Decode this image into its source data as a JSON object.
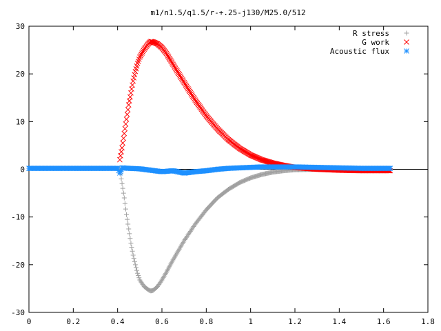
{
  "chart_data": {
    "type": "scatter",
    "title": "m1/n1.5/q1.5/r-+.25-j130/M25.0/512",
    "xlabel": "",
    "ylabel": "",
    "xlim": [
      0,
      1.8
    ],
    "ylim": [
      -30,
      30
    ],
    "x_ticks": [
      0,
      0.2,
      0.4,
      0.6,
      0.8,
      1,
      1.2,
      1.4,
      1.6,
      1.8
    ],
    "x_tick_labels": [
      "0",
      "0.2",
      "0.4",
      "0.6",
      "0.8",
      "1",
      "1.2",
      "1.4",
      "1.6",
      "1.8"
    ],
    "y_ticks": [
      -30,
      -20,
      -10,
      0,
      10,
      20,
      30
    ],
    "y_tick_labels": [
      "-30",
      "-20",
      "-10",
      "0",
      "10",
      "20",
      "30"
    ],
    "grid": false,
    "legend_position": "top-right",
    "series": [
      {
        "name": "R stress",
        "marker": "plus",
        "color": "#a0a0a0",
        "x": [
          0.41,
          0.42,
          0.43,
          0.44,
          0.45,
          0.46,
          0.47,
          0.48,
          0.49,
          0.5,
          0.52,
          0.54,
          0.55,
          0.56,
          0.58,
          0.6,
          0.62,
          0.65,
          0.7,
          0.75,
          0.8,
          0.85,
          0.9,
          0.95,
          1.0,
          1.05,
          1.1,
          1.15,
          1.2,
          1.3,
          1.4,
          1.5,
          1.63
        ],
        "y": [
          0,
          -3,
          -6,
          -9.5,
          -12.5,
          -15.5,
          -18,
          -20,
          -21.8,
          -23.2,
          -24.6,
          -25.3,
          -25.5,
          -25.4,
          -24.6,
          -23.2,
          -21.6,
          -19,
          -15,
          -11.5,
          -8.5,
          -6,
          -4.2,
          -2.8,
          -1.8,
          -1.1,
          -0.6,
          -0.3,
          -0.1,
          0,
          0,
          0,
          0
        ]
      },
      {
        "name": "G work",
        "marker": "cross",
        "color": "#ff0000",
        "x": [
          0.41,
          0.42,
          0.43,
          0.44,
          0.45,
          0.46,
          0.47,
          0.48,
          0.49,
          0.5,
          0.52,
          0.54,
          0.55,
          0.56,
          0.58,
          0.6,
          0.62,
          0.65,
          0.7,
          0.75,
          0.8,
          0.85,
          0.9,
          0.95,
          1.0,
          1.05,
          1.1,
          1.15,
          1.2,
          1.3,
          1.4,
          1.5,
          1.63
        ],
        "y": [
          2,
          4.5,
          7.5,
          10.5,
          13.5,
          16,
          18.5,
          20.5,
          22.2,
          23.5,
          25.2,
          26.4,
          26.8,
          26.7,
          26.3,
          25.5,
          24.3,
          22,
          18.2,
          14.5,
          11.2,
          8.5,
          6.2,
          4.4,
          3.0,
          2.0,
          1.3,
          0.8,
          0.4,
          0,
          -0.2,
          -0.3,
          -0.3
        ]
      },
      {
        "name": "Acoustic flux",
        "marker": "star",
        "color": "#1e90ff",
        "x": [
          0.0,
          0.05,
          0.1,
          0.15,
          0.2,
          0.25,
          0.3,
          0.35,
          0.4,
          0.41,
          0.42,
          0.45,
          0.5,
          0.55,
          0.6,
          0.65,
          0.7,
          0.75,
          0.8,
          0.85,
          0.9,
          0.95,
          1.0,
          1.05,
          1.1,
          1.15,
          1.2,
          1.3,
          1.4,
          1.5,
          1.63
        ],
        "y": [
          0.2,
          0.2,
          0.2,
          0.2,
          0.2,
          0.2,
          0.2,
          0.2,
          0.2,
          -0.8,
          0.3,
          0.2,
          0.1,
          -0.2,
          -0.5,
          -0.3,
          -0.8,
          -0.5,
          -0.3,
          0,
          0.2,
          0.3,
          0.4,
          0.5,
          0.5,
          0.5,
          0.5,
          0.4,
          0.3,
          0.2,
          0.2
        ]
      }
    ]
  }
}
